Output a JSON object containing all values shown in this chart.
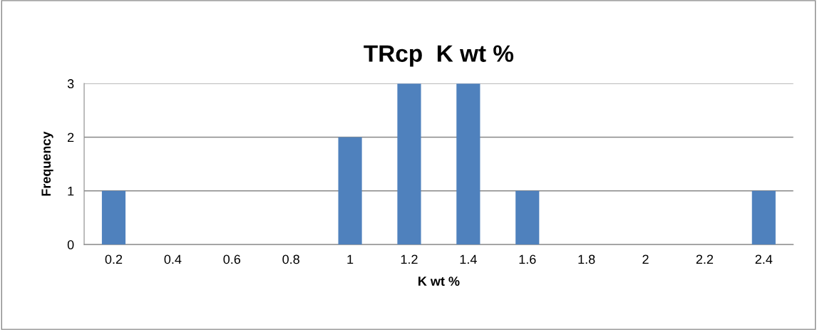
{
  "chart_data": {
    "type": "bar",
    "title": "TRcp  K wt %",
    "xlabel": "K wt %",
    "ylabel": "Frequency",
    "categories": [
      "0.2",
      "0.4",
      "0.6",
      "0.8",
      "1",
      "1.2",
      "1.4",
      "1.6",
      "1.8",
      "2",
      "2.2",
      "2.4"
    ],
    "values": [
      1,
      0,
      0,
      0,
      2,
      3,
      3,
      1,
      0,
      0,
      0,
      1
    ],
    "color": "#4f81bd",
    "ylim": [
      0,
      3
    ],
    "yticks": [
      0,
      1,
      2,
      3
    ],
    "grid": "y"
  }
}
